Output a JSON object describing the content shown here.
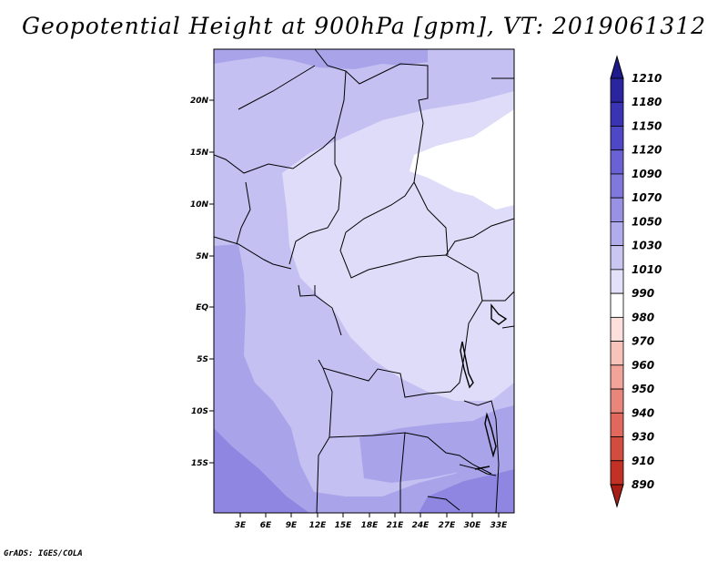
{
  "title": "Geopotential Height at 900hPa [gpm], VT: 2019061312",
  "credit": "GrADS: IGES/COLA",
  "map": {
    "lat_labels": [
      "20N",
      "15N",
      "10N",
      "5N",
      "EQ",
      "5S",
      "10S",
      "15S"
    ],
    "lon_labels": [
      "3E",
      "6E",
      "9E",
      "12E",
      "15E",
      "18E",
      "21E",
      "24E",
      "27E",
      "30E",
      "33E"
    ]
  },
  "legend": {
    "levels": [
      "1210",
      "1180",
      "1150",
      "1120",
      "1090",
      "1070",
      "1050",
      "1030",
      "1010",
      "990",
      "980",
      "970",
      "960",
      "950",
      "940",
      "930",
      "910",
      "890"
    ],
    "colors": [
      "#1e1a8c",
      "#2a259f",
      "#3a34b4",
      "#4e47c6",
      "#6a62d4",
      "#8078dc",
      "#9891e4",
      "#b1acec",
      "#cac6f2",
      "#e3e1f9",
      "#ffffff",
      "#fde0dc",
      "#f8c3bb",
      "#f2a49a",
      "#e9867b",
      "#e0685c",
      "#d34c40",
      "#c23126",
      "#a81d14"
    ]
  },
  "colors": {
    "level_1010_1030": "#dedcf8",
    "level_1030_1050": "#c4c0f2",
    "level_1050_1070": "#a9a4ea",
    "level_1070_1090": "#8e86e0"
  }
}
